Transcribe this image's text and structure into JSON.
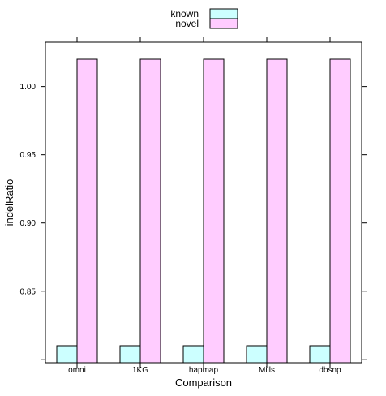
{
  "chart_data": {
    "type": "bar",
    "xlabel": "Comparison",
    "ylabel": "indelRatio",
    "categories": [
      "omni",
      "1KG",
      "hapmap",
      "Mills",
      "dbsnp"
    ],
    "series": [
      {
        "name": "known",
        "values": [
          0.81,
          0.81,
          0.81,
          0.81,
          0.81
        ],
        "color": "#ccffff"
      },
      {
        "name": "novel",
        "values": [
          1.02,
          1.02,
          1.02,
          1.02,
          1.02
        ],
        "color": "#ffccff"
      }
    ],
    "yticks": [
      0.85,
      0.9,
      0.95,
      1.0
    ],
    "ytick_labels": [
      "0.85",
      "0.90",
      "0.95",
      "1.00"
    ],
    "ylim": [
      0.7975,
      1.0325
    ],
    "grid": false,
    "legend_position": "top"
  }
}
